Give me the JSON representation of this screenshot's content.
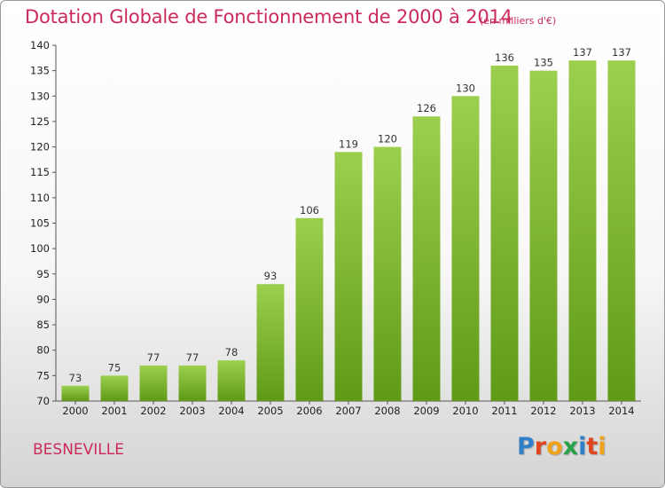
{
  "chart_data": {
    "type": "bar",
    "title": "Dotation Globale de Fonctionnement de 2000 à 2014",
    "subtitle": "(en milliers d'€)",
    "categories": [
      "2000",
      "2001",
      "2002",
      "2003",
      "2004",
      "2005",
      "2006",
      "2007",
      "2008",
      "2009",
      "2010",
      "2011",
      "2012",
      "2013",
      "2014"
    ],
    "values": [
      73,
      75,
      77,
      77,
      78,
      93,
      106,
      119,
      120,
      126,
      130,
      136,
      135,
      137,
      137
    ],
    "ylim": [
      70,
      140
    ],
    "yticks": [
      70,
      75,
      80,
      85,
      90,
      95,
      100,
      105,
      110,
      115,
      120,
      125,
      130,
      135,
      140
    ],
    "grid": false,
    "bar_color_top": "#9ccf4e",
    "bar_color_bottom": "#5f9a16"
  },
  "footer": {
    "town": "BESNEVILLE",
    "logo_letters": [
      {
        "ch": "P",
        "color": "#2f80c8"
      },
      {
        "ch": "r",
        "color": "#e0461f"
      },
      {
        "ch": "o",
        "color": "#f0a21a"
      },
      {
        "ch": "x",
        "color": "#2aa24a"
      },
      {
        "ch": "i",
        "color": "#2f80c8"
      },
      {
        "ch": "t",
        "color": "#e0461f"
      },
      {
        "ch": "i",
        "color": "#f0a21a"
      }
    ]
  }
}
